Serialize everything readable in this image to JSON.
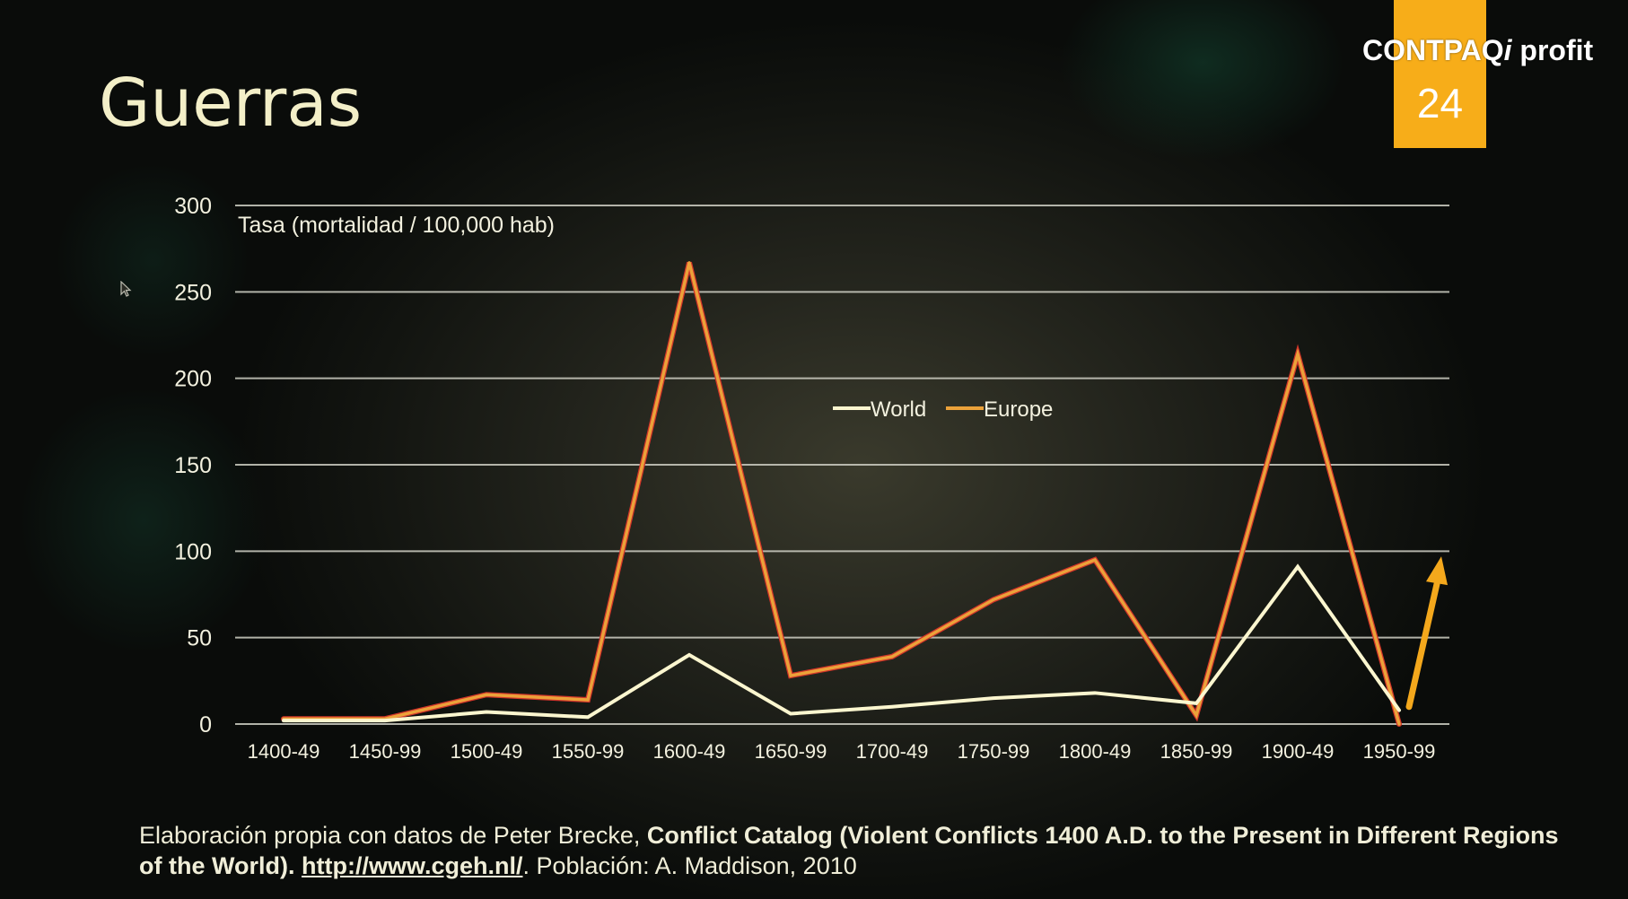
{
  "slide": {
    "title": "Guerras",
    "brand": {
      "name_main": "CONTPAQ",
      "name_i": "i",
      "name_suffix": "profit",
      "badge_number": "24"
    },
    "source": {
      "prefix": "Elaboración propia con datos de  Peter Brecke, ",
      "bold_title": "Conflict Catalog (Violent Conflicts 1400 A.D. to the Present  in Different Regions of the World).",
      "link": "http://www.cgeh.nl/",
      "suffix": ". Población: A. Maddison, 2010"
    }
  },
  "chart_data": {
    "type": "line",
    "ylabel": "Tasa (mortalidad / 100,000 hab)",
    "categories": [
      "1400-49",
      "1450-99",
      "1500-49",
      "1550-99",
      "1600-49",
      "1650-99",
      "1700-49",
      "1750-99",
      "1800-49",
      "1850-99",
      "1900-49",
      "1950-99"
    ],
    "ylim": [
      0,
      300
    ],
    "yticks": [
      0,
      50,
      100,
      150,
      200,
      250,
      300
    ],
    "grid": true,
    "legend_position": "center-top",
    "series": [
      {
        "name": "World",
        "color": "#fbf6cf",
        "values": [
          2,
          2,
          7,
          4,
          40,
          6,
          10,
          15,
          18,
          12,
          91,
          8
        ]
      },
      {
        "name": "Europe",
        "color": "#eba23a",
        "outline": "#d2342a",
        "values": [
          3,
          3,
          17,
          14,
          267,
          28,
          39,
          72,
          95,
          5,
          214,
          0
        ]
      }
    ],
    "annotation": {
      "type": "arrow",
      "color": "#f4a81c",
      "from_value": 10,
      "to_value": 97
    }
  }
}
